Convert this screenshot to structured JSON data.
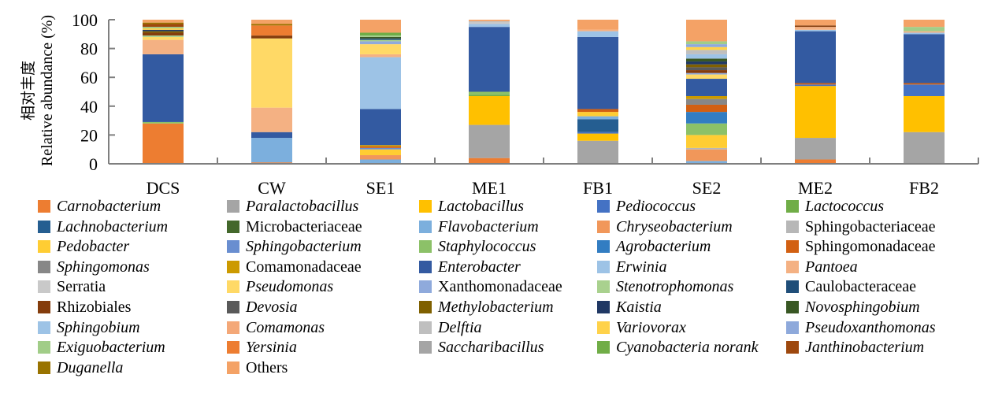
{
  "chart_data": {
    "type": "bar",
    "stacked": true,
    "title": "",
    "xlabel": "",
    "ylabel": "Relative abundance (%)",
    "ylabel_cn": "相对丰度",
    "ylim": [
      0,
      100
    ],
    "yticks": [
      0,
      20,
      40,
      60,
      80,
      100
    ],
    "grid": false,
    "legend_position": "bottom",
    "categories": [
      "DCS",
      "CW",
      "SE1",
      "ME1",
      "FB1",
      "SE2",
      "ME2",
      "FB2"
    ],
    "series": [
      {
        "name": "Carnobacterium",
        "italic": true,
        "color": "#ED7D31",
        "values": [
          28,
          1,
          0,
          4,
          0,
          0,
          3,
          0
        ]
      },
      {
        "name": "Paralactobacillus",
        "italic": true,
        "color": "#A5A5A5",
        "values": [
          0,
          0,
          0,
          23,
          16,
          0,
          15,
          22
        ]
      },
      {
        "name": "Lactobacillus",
        "italic": true,
        "color": "#FFC000",
        "values": [
          0,
          0,
          0,
          20,
          5,
          0,
          36,
          25
        ]
      },
      {
        "name": "Pediococcus",
        "italic": true,
        "color": "#4472C4",
        "values": [
          0,
          0,
          0,
          0,
          1,
          0,
          1,
          8
        ]
      },
      {
        "name": "Lactococcus",
        "italic": true,
        "color": "#70AD47",
        "values": [
          0,
          0,
          0,
          1,
          0,
          0,
          0,
          0
        ]
      },
      {
        "name": "Lachnobacterium",
        "italic": true,
        "color": "#255E91",
        "values": [
          0,
          0,
          0,
          0,
          9,
          0,
          0,
          0
        ]
      },
      {
        "name": "Microbacteriaceae",
        "italic": false,
        "color": "#43682B",
        "values": [
          0,
          0,
          0,
          0,
          0,
          0,
          0,
          0
        ]
      },
      {
        "name": "Flavobacterium",
        "italic": true,
        "color": "#7CAFDD",
        "values": [
          0,
          17,
          3,
          0,
          2,
          2,
          0,
          0
        ]
      },
      {
        "name": "Chryseobacterium",
        "italic": true,
        "color": "#F1975A",
        "values": [
          0,
          0,
          3,
          0,
          0,
          8,
          0,
          0
        ]
      },
      {
        "name": "Sphingobacteriaceae",
        "italic": false,
        "color": "#B7B7B7",
        "values": [
          0,
          0,
          0,
          0,
          0,
          1,
          0,
          0
        ]
      },
      {
        "name": "Pedobacter",
        "italic": true,
        "color": "#FFCD33",
        "values": [
          0,
          0,
          4,
          0,
          3,
          9,
          0,
          0
        ]
      },
      {
        "name": "Sphingobacterium",
        "italic": true,
        "color": "#698ED0",
        "values": [
          0,
          0,
          1,
          0,
          0,
          0,
          0,
          0
        ]
      },
      {
        "name": "Staphylococcus",
        "italic": true,
        "color": "#8CC168",
        "values": [
          1,
          0,
          0,
          2,
          0,
          8,
          0,
          0
        ]
      },
      {
        "name": "Agrobacterium",
        "italic": true,
        "color": "#327DC2",
        "values": [
          0,
          0,
          0,
          0,
          0,
          8,
          0,
          0
        ]
      },
      {
        "name": "Sphingomonadaceae",
        "italic": false,
        "color": "#D26012",
        "values": [
          0,
          0,
          1,
          0,
          2,
          5,
          1,
          1
        ]
      },
      {
        "name": "Sphingomonas",
        "italic": true,
        "color": "#878787",
        "values": [
          0,
          0,
          0,
          0,
          0,
          4,
          0,
          0
        ]
      },
      {
        "name": "Comamonadaceae",
        "italic": false,
        "color": "#CC9A00",
        "values": [
          0,
          0,
          1,
          0,
          0,
          2,
          0,
          0
        ]
      },
      {
        "name": "Enterobacter",
        "italic": true,
        "color": "#335AA1",
        "values": [
          47,
          4,
          25,
          45,
          50,
          12,
          36,
          34
        ]
      },
      {
        "name": "Erwinia",
        "italic": true,
        "color": "#9DC3E6",
        "values": [
          0,
          0,
          36,
          2,
          4,
          0,
          1,
          1
        ]
      },
      {
        "name": "Pantoea",
        "italic": true,
        "color": "#F4B183",
        "values": [
          10,
          17,
          2,
          0,
          1,
          0,
          2,
          1
        ]
      },
      {
        "name": "Serratia",
        "italic": false,
        "color": "#C9C9C9",
        "values": [
          0,
          0,
          0,
          1,
          0,
          0,
          0,
          0
        ]
      },
      {
        "name": "Pseudomonas",
        "italic": true,
        "color": "#FFD966",
        "values": [
          2,
          48,
          7,
          0,
          0,
          3,
          0,
          0
        ]
      },
      {
        "name": "Xanthomonadaceae",
        "italic": false,
        "color": "#8FAADC",
        "values": [
          0,
          0,
          2,
          0,
          0,
          1,
          0,
          0
        ]
      },
      {
        "name": "Stenotrophomonas",
        "italic": true,
        "color": "#A9D18E",
        "values": [
          1,
          0,
          1,
          0,
          0,
          0,
          0,
          0
        ]
      },
      {
        "name": "Caulobacteraceae",
        "italic": false,
        "color": "#1F4E79",
        "values": [
          0,
          0,
          1,
          0,
          0,
          0,
          0,
          0
        ]
      },
      {
        "name": "Rhizobiales",
        "italic": false,
        "color": "#843C0C",
        "values": [
          2,
          2,
          0,
          0,
          0,
          2,
          1,
          0
        ]
      },
      {
        "name": "Devosia",
        "italic": true,
        "color": "#595959",
        "values": [
          0,
          0,
          0,
          0,
          0,
          2,
          0,
          0
        ]
      },
      {
        "name": "Methylobacterium",
        "italic": true,
        "color": "#7F6000",
        "values": [
          1,
          0,
          0,
          0,
          0,
          2,
          0,
          0
        ]
      },
      {
        "name": "Kaistia",
        "italic": true,
        "color": "#203864",
        "values": [
          1,
          0,
          0,
          0,
          0,
          2,
          0,
          0
        ]
      },
      {
        "name": "Novosphingobium",
        "italic": true,
        "color": "#385723",
        "values": [
          0,
          0,
          1,
          0,
          0,
          2,
          0,
          0
        ]
      },
      {
        "name": "Sphingobium",
        "italic": true,
        "color": "#9DC3E6",
        "values": [
          0,
          0,
          0,
          0,
          0,
          3,
          0,
          0
        ]
      },
      {
        "name": "Comamonas",
        "italic": true,
        "color": "#F4A878",
        "values": [
          0,
          0,
          0,
          0,
          0,
          0,
          0,
          0
        ]
      },
      {
        "name": "Delftia",
        "italic": true,
        "color": "#BFBFBF",
        "values": [
          0,
          0,
          0,
          1,
          0,
          3,
          0,
          0
        ]
      },
      {
        "name": "Variovorax",
        "italic": true,
        "color": "#FFD24A",
        "values": [
          1,
          0,
          0,
          0,
          0,
          2,
          0,
          0
        ]
      },
      {
        "name": "Pseudoxanthomonas",
        "italic": true,
        "color": "#8EA9DB",
        "values": [
          0,
          0,
          0,
          0,
          0,
          2,
          0,
          0
        ]
      },
      {
        "name": "Exiguobacterium",
        "italic": true,
        "color": "#A1CD88",
        "values": [
          1,
          0,
          1,
          0,
          0,
          2,
          0,
          3
        ]
      },
      {
        "name": "Yersinia",
        "italic": true,
        "color": "#ED7D31",
        "values": [
          0,
          7,
          0,
          0,
          0,
          0,
          0,
          0
        ]
      },
      {
        "name": "Saccharibacillus",
        "italic": true,
        "color": "#A5A5A5",
        "values": [
          0,
          0,
          0,
          0,
          0,
          0,
          0,
          0
        ]
      },
      {
        "name": "Cyanobacteria norank",
        "italic": true,
        "color": "#70AD47",
        "values": [
          0,
          0,
          2,
          0,
          0,
          0,
          0,
          0
        ]
      },
      {
        "name": "Janthinobacterium",
        "italic": true,
        "color": "#9E480E",
        "values": [
          2,
          0,
          0,
          0,
          0,
          0,
          0,
          0
        ]
      },
      {
        "name": "Duganella",
        "italic": true,
        "color": "#997300",
        "values": [
          1,
          1,
          0,
          0,
          0,
          0,
          0,
          0
        ]
      },
      {
        "name": "Others",
        "italic": false,
        "color": "#F4A266",
        "values": [
          2,
          3,
          9,
          1,
          7,
          15,
          4,
          5
        ]
      }
    ]
  }
}
